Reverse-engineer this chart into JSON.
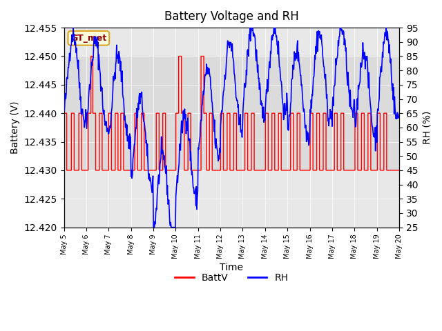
{
  "title": "Battery Voltage and RH",
  "xlabel": "Time",
  "ylabel_left": "Battery (V)",
  "ylabel_right": "RH (%)",
  "ylim_left": [
    12.42,
    12.455
  ],
  "ylim_right": [
    25,
    95
  ],
  "yticks_left": [
    12.42,
    12.425,
    12.43,
    12.435,
    12.44,
    12.445,
    12.45,
    12.455
  ],
  "yticks_right": [
    25,
    30,
    35,
    40,
    45,
    50,
    55,
    60,
    65,
    70,
    75,
    80,
    85,
    90,
    95
  ],
  "xtick_labels": [
    "May 5",
    "May 6",
    "May 7",
    "May 8",
    "May 9",
    "May 10",
    "May 11",
    "May 12",
    "May 13",
    "May 14",
    "May 15",
    "May 16",
    "May 17",
    "May 18",
    "May 19",
    "May 20"
  ],
  "shading_ylim": [
    12.43,
    12.45
  ],
  "legend_labels": [
    "BattV",
    "RH"
  ],
  "legend_colors": [
    "red",
    "blue"
  ],
  "station_label": "GT_met",
  "batt_color": "red",
  "rh_color": "blue",
  "background_color": "#f0f0f0",
  "plot_bg_color": "#e8e8e8",
  "band_color": "#d8d8d8"
}
